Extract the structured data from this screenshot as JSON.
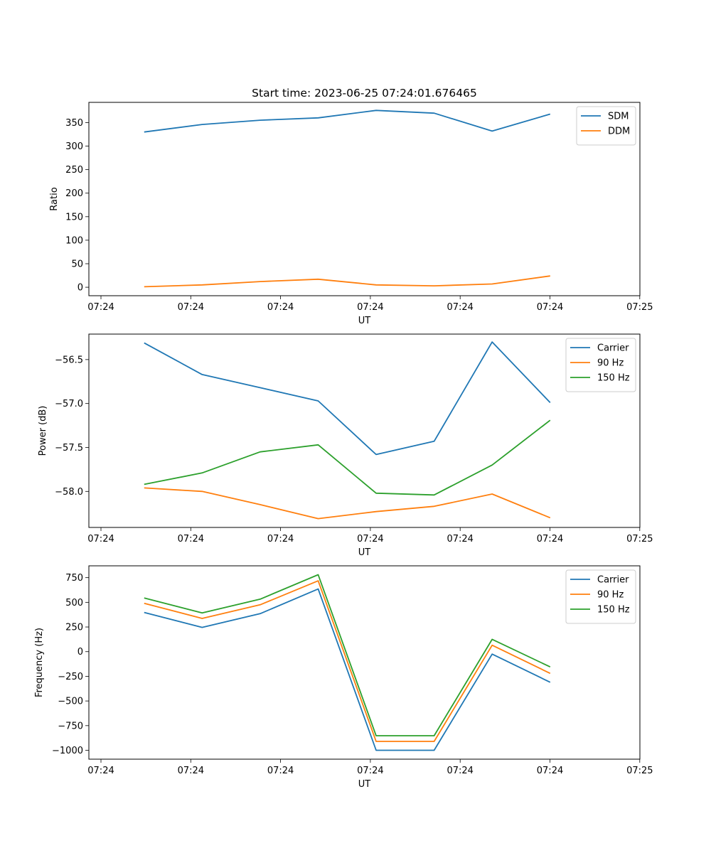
{
  "chart_data": [
    {
      "type": "line",
      "title": "Start time: 2023-06-25 07:24:01.676465",
      "xlabel": "UT",
      "ylabel": "Ratio",
      "xtick_labels": [
        "07:24",
        "07:24",
        "07:24",
        "07:24",
        "07:24",
        "07:24",
        "07:25"
      ],
      "yticks": [
        0,
        50,
        100,
        150,
        200,
        250,
        300,
        350
      ],
      "ytick_labels": [
        "0",
        "50",
        "100",
        "150",
        "200",
        "250",
        "300",
        "350"
      ],
      "xlim": [
        0,
        6.15
      ],
      "ylim": [
        -18,
        393
      ],
      "legend_position": "upper right",
      "series": [
        {
          "name": "SDM",
          "color": "#1f77b4",
          "x": [
            0.5,
            1.15,
            1.8,
            2.45,
            3.1,
            3.75,
            4.4,
            5.05
          ],
          "y": [
            330,
            346,
            355,
            360,
            376,
            370,
            332,
            368
          ]
        },
        {
          "name": "DDM",
          "color": "#ff7f0e",
          "x": [
            0.5,
            1.15,
            1.8,
            2.45,
            3.1,
            3.75,
            4.4,
            5.05
          ],
          "y": [
            1,
            5,
            12,
            17,
            5,
            3,
            7,
            24
          ]
        }
      ]
    },
    {
      "type": "line",
      "title": "",
      "xlabel": "UT",
      "ylabel": "Power (dB)",
      "xtick_labels": [
        "07:24",
        "07:24",
        "07:24",
        "07:24",
        "07:24",
        "07:24",
        "07:25"
      ],
      "yticks": [
        -58.0,
        -57.5,
        -57.0,
        -56.5
      ],
      "ytick_labels": [
        "−58.0",
        "−57.5",
        "−57.0",
        "−56.5"
      ],
      "xlim": [
        0,
        6.15
      ],
      "ylim": [
        -58.41,
        -56.21
      ],
      "legend_position": "upper right",
      "series": [
        {
          "name": "Carrier",
          "color": "#1f77b4",
          "x": [
            0.5,
            1.15,
            1.8,
            2.45,
            3.1,
            3.75,
            4.4,
            5.05
          ],
          "y": [
            -56.31,
            -56.67,
            -56.82,
            -56.97,
            -57.58,
            -57.43,
            -56.3,
            -56.99
          ]
        },
        {
          "name": "90 Hz",
          "color": "#ff7f0e",
          "x": [
            0.5,
            1.15,
            1.8,
            2.45,
            3.1,
            3.75,
            4.4,
            5.05
          ],
          "y": [
            -57.96,
            -58.0,
            -58.15,
            -58.31,
            -58.23,
            -58.17,
            -58.03,
            -58.3
          ]
        },
        {
          "name": "150 Hz",
          "color": "#2ca02c",
          "x": [
            0.5,
            1.15,
            1.8,
            2.45,
            3.1,
            3.75,
            4.4,
            5.05
          ],
          "y": [
            -57.92,
            -57.79,
            -57.55,
            -57.47,
            -58.02,
            -58.04,
            -57.7,
            -57.19
          ]
        }
      ]
    },
    {
      "type": "line",
      "title": "",
      "xlabel": "UT",
      "ylabel": "Frequency (Hz)",
      "xtick_labels": [
        "07:24",
        "07:24",
        "07:24",
        "07:24",
        "07:24",
        "07:24",
        "07:25"
      ],
      "yticks": [
        -1000,
        -750,
        -500,
        -250,
        0,
        250,
        500,
        750
      ],
      "ytick_labels": [
        "−1000",
        "−750",
        "−500",
        "−250",
        "0",
        "250",
        "500",
        "750"
      ],
      "xlim": [
        0,
        6.15
      ],
      "ylim": [
        -1090,
        870
      ],
      "legend_position": "upper right",
      "series": [
        {
          "name": "Carrier",
          "color": "#1f77b4",
          "x": [
            0.5,
            1.15,
            1.8,
            2.45,
            3.1,
            3.75,
            4.4,
            5.05
          ],
          "y": [
            397,
            246,
            385,
            635,
            -1000,
            -1000,
            -25,
            -310
          ]
        },
        {
          "name": "90 Hz",
          "color": "#ff7f0e",
          "x": [
            0.5,
            1.15,
            1.8,
            2.45,
            3.1,
            3.75,
            4.4,
            5.05
          ],
          "y": [
            490,
            337,
            475,
            718,
            -910,
            -910,
            65,
            -220
          ]
        },
        {
          "name": "150 Hz",
          "color": "#2ca02c",
          "x": [
            0.5,
            1.15,
            1.8,
            2.45,
            3.1,
            3.75,
            4.4,
            5.05
          ],
          "y": [
            544,
            392,
            532,
            780,
            -852,
            -852,
            125,
            -155
          ]
        }
      ]
    }
  ]
}
